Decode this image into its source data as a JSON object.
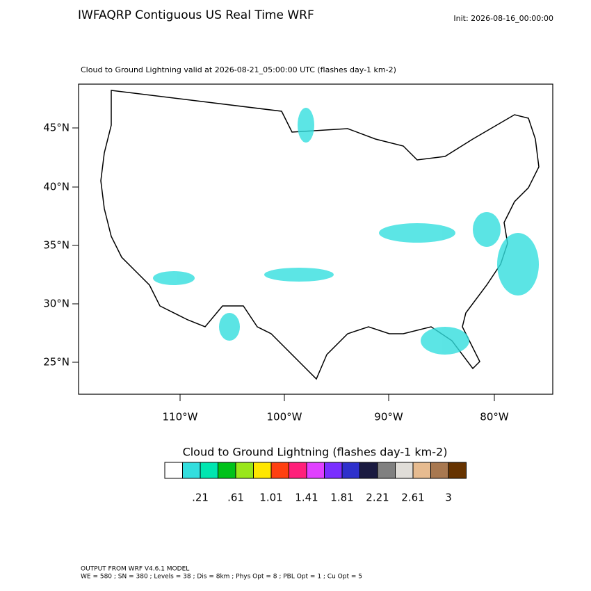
{
  "title": "IWFAQRP Contiguous US Real Time WRF",
  "init": "Init: 2026-08-16_00:00:00",
  "subtitle": "Cloud to Ground Lightning valid at 2026-08-21_05:00:00 UTC   (flashes day-1 km-2)",
  "lat_labels": [
    "45°N",
    "40°N",
    "35°N",
    "30°N",
    "25°N"
  ],
  "lon_labels": [
    "110°W",
    "100°W",
    "90°W",
    "80°W"
  ],
  "colorbar": {
    "title": "Cloud to Ground Lightning  (flashes day-1 km-2)",
    "colors": [
      "#ffffff",
      "#33dede",
      "#00e6b0",
      "#00c21a",
      "#99e61a",
      "#ffe600",
      "#ff4010",
      "#ff1f7a",
      "#e040ff",
      "#7a2eff",
      "#2e30cc",
      "#1a1a40",
      "#808080",
      "#e0ddd8",
      "#e6bb90",
      "#a87850",
      "#663300"
    ],
    "labels": [
      ".21",
      ".61",
      "1.01",
      "1.41",
      "1.81",
      "2.21",
      "2.61",
      "3"
    ]
  },
  "footer": [
    "OUTPUT FROM WRF V4.6.1 MODEL",
    "WE = 580 ; SN = 380 ; Levels = 38 ; Dis = 8km ; Phys Opt = 8 ; PBL Opt = 1 ; Cu Opt = 5"
  ]
}
